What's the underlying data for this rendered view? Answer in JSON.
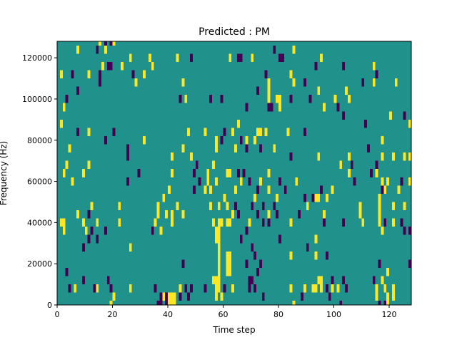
{
  "chart_data": {
    "type": "heatmap",
    "title": "Predicted : PM",
    "xlabel": "Time step",
    "ylabel": "Frequency (Hz)",
    "xlim": [
      0,
      128
    ],
    "ylim": [
      0,
      128000
    ],
    "x_ticks": [
      0,
      20,
      40,
      60,
      80,
      100,
      120
    ],
    "y_ticks": [
      0,
      20000,
      40000,
      60000,
      80000,
      100000,
      120000
    ],
    "x_tick_labels": [
      "0",
      "20",
      "40",
      "60",
      "80",
      "100",
      "120"
    ],
    "y_tick_labels": [
      "0",
      "20000",
      "40000",
      "60000",
      "80000",
      "100000",
      "120000"
    ],
    "grid": false,
    "colormap": "viridis",
    "levels": {
      "low": 0,
      "mid": 1,
      "high": 2
    },
    "colors": {
      "low": "#440154",
      "mid": "#21918c",
      "high": "#fde725"
    },
    "background_value": 1,
    "cell_width_steps": 1,
    "cell_height_hz": 4000,
    "cells": [
      [
        36,
        0,
        0
      ],
      [
        37,
        0,
        0
      ],
      [
        37,
        4000,
        0
      ],
      [
        38,
        4000,
        2
      ],
      [
        39,
        0,
        0
      ],
      [
        39,
        4000,
        0
      ],
      [
        40,
        0,
        2
      ],
      [
        40,
        4000,
        2
      ],
      [
        41,
        0,
        2
      ],
      [
        41,
        4000,
        2
      ],
      [
        42,
        0,
        2
      ],
      [
        42,
        4000,
        2
      ],
      [
        19,
        0,
        2
      ],
      [
        20,
        4000,
        2
      ],
      [
        85,
        0,
        2
      ],
      [
        44,
        4000,
        0
      ],
      [
        47,
        4000,
        0
      ],
      [
        102,
        0,
        0
      ],
      [
        116,
        0,
        0
      ],
      [
        118,
        0,
        0
      ],
      [
        119,
        4000,
        2
      ],
      [
        119,
        0,
        2
      ],
      [
        4,
        8000,
        0
      ],
      [
        6,
        8000,
        2
      ],
      [
        13,
        8000,
        0
      ],
      [
        14,
        8000,
        2
      ],
      [
        19,
        8000,
        0
      ],
      [
        26,
        8000,
        2
      ],
      [
        35,
        8000,
        0
      ],
      [
        44,
        8000,
        2
      ],
      [
        46,
        8000,
        0
      ],
      [
        48,
        8000,
        0
      ],
      [
        53,
        8000,
        0
      ],
      [
        57,
        8000,
        2
      ],
      [
        58,
        8000,
        2
      ],
      [
        60,
        8000,
        0
      ],
      [
        63,
        8000,
        2
      ],
      [
        69,
        8000,
        0
      ],
      [
        71,
        8000,
        0
      ],
      [
        84,
        8000,
        2
      ],
      [
        89,
        8000,
        2
      ],
      [
        92,
        8000,
        2
      ],
      [
        93,
        8000,
        2
      ],
      [
        95,
        8000,
        2
      ],
      [
        97,
        8000,
        0
      ],
      [
        99,
        8000,
        2
      ],
      [
        101,
        8000,
        2
      ],
      [
        104,
        8000,
        0
      ],
      [
        115,
        8000,
        2
      ],
      [
        118,
        8000,
        2
      ],
      [
        121,
        8000,
        2
      ],
      [
        57,
        4000,
        2
      ],
      [
        59,
        4000,
        2
      ],
      [
        74,
        4000,
        0
      ],
      [
        88,
        4000,
        0
      ],
      [
        98,
        4000,
        0
      ],
      [
        115,
        4000,
        2
      ],
      [
        121,
        4000,
        2
      ],
      [
        9,
        12000,
        0
      ],
      [
        18,
        12000,
        0
      ],
      [
        56,
        12000,
        2
      ],
      [
        57,
        12000,
        2
      ],
      [
        58,
        12000,
        2
      ],
      [
        69,
        12000,
        0
      ],
      [
        70,
        12000,
        0
      ],
      [
        94,
        12000,
        2
      ],
      [
        95,
        12000,
        2
      ],
      [
        99,
        12000,
        0
      ],
      [
        103,
        12000,
        0
      ],
      [
        114,
        12000,
        0
      ],
      [
        117,
        12000,
        2
      ],
      [
        3,
        16000,
        0
      ],
      [
        58,
        16000,
        2
      ],
      [
        61,
        16000,
        2
      ],
      [
        62,
        16000,
        2
      ],
      [
        72,
        16000,
        0
      ],
      [
        119,
        16000,
        2
      ],
      [
        58,
        20000,
        2
      ],
      [
        45,
        20000,
        0
      ],
      [
        61,
        20000,
        2
      ],
      [
        62,
        20000,
        2
      ],
      [
        68,
        20000,
        0
      ],
      [
        73,
        20000,
        0
      ],
      [
        116,
        20000,
        0
      ],
      [
        127,
        20000,
        0
      ],
      [
        58,
        24000,
        2
      ],
      [
        61,
        24000,
        2
      ],
      [
        62,
        24000,
        2
      ],
      [
        71,
        24000,
        0
      ],
      [
        84,
        24000,
        2
      ],
      [
        93,
        24000,
        2
      ],
      [
        97,
        24000,
        0
      ],
      [
        58,
        28000,
        2
      ],
      [
        9,
        28000,
        0
      ],
      [
        26,
        28000,
        2
      ],
      [
        70,
        28000,
        0
      ],
      [
        90,
        28000,
        0
      ],
      [
        57,
        32000,
        2
      ],
      [
        58,
        32000,
        2
      ],
      [
        11,
        32000,
        0
      ],
      [
        14,
        32000,
        0
      ],
      [
        66,
        32000,
        0
      ],
      [
        80,
        32000,
        0
      ],
      [
        93,
        32000,
        2
      ],
      [
        2,
        36000,
        2
      ],
      [
        10,
        36000,
        2
      ],
      [
        12,
        36000,
        0
      ],
      [
        17,
        36000,
        0
      ],
      [
        34,
        36000,
        0
      ],
      [
        37,
        36000,
        2
      ],
      [
        57,
        36000,
        2
      ],
      [
        58,
        36000,
        2
      ],
      [
        68,
        36000,
        0
      ],
      [
        117,
        36000,
        2
      ],
      [
        125,
        36000,
        0
      ],
      [
        127,
        36000,
        0
      ],
      [
        1,
        40000,
        2
      ],
      [
        2,
        40000,
        2
      ],
      [
        9,
        40000,
        2
      ],
      [
        14,
        40000,
        2
      ],
      [
        22,
        40000,
        2
      ],
      [
        35,
        40000,
        2
      ],
      [
        41,
        40000,
        2
      ],
      [
        56,
        40000,
        2
      ],
      [
        58,
        40000,
        2
      ],
      [
        59,
        40000,
        2
      ],
      [
        61,
        40000,
        2
      ],
      [
        62,
        40000,
        2
      ],
      [
        69,
        40000,
        2
      ],
      [
        74,
        40000,
        0
      ],
      [
        76,
        40000,
        0
      ],
      [
        84,
        40000,
        2
      ],
      [
        96,
        40000,
        0
      ],
      [
        103,
        40000,
        0
      ],
      [
        110,
        40000,
        2
      ],
      [
        116,
        40000,
        2
      ],
      [
        118,
        40000,
        0
      ],
      [
        121,
        40000,
        2
      ],
      [
        124,
        40000,
        0
      ],
      [
        7,
        44000,
        2
      ],
      [
        11,
        44000,
        0
      ],
      [
        36,
        44000,
        2
      ],
      [
        39,
        44000,
        2
      ],
      [
        41,
        44000,
        2
      ],
      [
        45,
        44000,
        2
      ],
      [
        63,
        44000,
        2
      ],
      [
        65,
        44000,
        0
      ],
      [
        72,
        44000,
        0
      ],
      [
        76,
        44000,
        2
      ],
      [
        79,
        44000,
        0
      ],
      [
        87,
        44000,
        0
      ],
      [
        96,
        44000,
        2
      ],
      [
        109,
        44000,
        2
      ],
      [
        116,
        44000,
        2
      ],
      [
        12,
        48000,
        2
      ],
      [
        22,
        48000,
        2
      ],
      [
        36,
        48000,
        2
      ],
      [
        43,
        48000,
        2
      ],
      [
        55,
        48000,
        2
      ],
      [
        58,
        48000,
        2
      ],
      [
        61,
        48000,
        2
      ],
      [
        64,
        48000,
        0
      ],
      [
        70,
        48000,
        0
      ],
      [
        74,
        48000,
        0
      ],
      [
        78,
        48000,
        0
      ],
      [
        90,
        48000,
        2
      ],
      [
        109,
        48000,
        2
      ],
      [
        116,
        48000,
        2
      ],
      [
        121,
        48000,
        2
      ],
      [
        125,
        48000,
        2
      ],
      [
        38,
        52000,
        2
      ],
      [
        60,
        52000,
        2
      ],
      [
        71,
        52000,
        2
      ],
      [
        79,
        52000,
        2
      ],
      [
        89,
        52000,
        0
      ],
      [
        92,
        52000,
        0
      ],
      [
        93,
        52000,
        2
      ],
      [
        94,
        52000,
        2
      ],
      [
        97,
        52000,
        2
      ],
      [
        116,
        52000,
        2
      ],
      [
        40,
        56000,
        2
      ],
      [
        49,
        56000,
        0
      ],
      [
        53,
        56000,
        2
      ],
      [
        55,
        56000,
        2
      ],
      [
        64,
        56000,
        2
      ],
      [
        72,
        56000,
        0
      ],
      [
        76,
        56000,
        2
      ],
      [
        82,
        56000,
        0
      ],
      [
        95,
        56000,
        0
      ],
      [
        99,
        56000,
        2
      ],
      [
        117,
        56000,
        0
      ],
      [
        118,
        56000,
        2
      ],
      [
        123,
        56000,
        2
      ],
      [
        5,
        60000,
        2
      ],
      [
        25,
        60000,
        0
      ],
      [
        51,
        60000,
        0
      ],
      [
        54,
        60000,
        2
      ],
      [
        57,
        60000,
        2
      ],
      [
        66,
        60000,
        2
      ],
      [
        69,
        60000,
        0
      ],
      [
        73,
        60000,
        2
      ],
      [
        80,
        60000,
        0
      ],
      [
        86,
        60000,
        2
      ],
      [
        107,
        60000,
        0
      ],
      [
        117,
        60000,
        2
      ],
      [
        119,
        60000,
        2
      ],
      [
        124,
        60000,
        0
      ],
      [
        127,
        60000,
        2
      ],
      [
        2,
        64000,
        2
      ],
      [
        9,
        64000,
        2
      ],
      [
        29,
        64000,
        0
      ],
      [
        41,
        64000,
        2
      ],
      [
        49,
        64000,
        0
      ],
      [
        54,
        64000,
        2
      ],
      [
        61,
        64000,
        2
      ],
      [
        62,
        64000,
        2
      ],
      [
        65,
        64000,
        0
      ],
      [
        67,
        64000,
        0
      ],
      [
        76,
        64000,
        2
      ],
      [
        105,
        64000,
        2
      ],
      [
        113,
        64000,
        0
      ],
      [
        115,
        64000,
        2
      ],
      [
        3,
        68000,
        2
      ],
      [
        11,
        68000,
        2
      ],
      [
        50,
        68000,
        0
      ],
      [
        56,
        68000,
        2
      ],
      [
        102,
        68000,
        2
      ],
      [
        106,
        68000,
        0
      ],
      [
        115,
        68000,
        0
      ],
      [
        25,
        72000,
        0
      ],
      [
        41,
        72000,
        2
      ],
      [
        48,
        72000,
        2
      ],
      [
        84,
        72000,
        0
      ],
      [
        94,
        72000,
        2
      ],
      [
        105,
        72000,
        2
      ],
      [
        117,
        72000,
        2
      ],
      [
        121,
        72000,
        2
      ],
      [
        125,
        72000,
        2
      ],
      [
        127,
        72000,
        2
      ],
      [
        4,
        76000,
        2
      ],
      [
        25,
        76000,
        0
      ],
      [
        45,
        76000,
        2
      ],
      [
        57,
        76000,
        2
      ],
      [
        64,
        76000,
        2
      ],
      [
        68,
        76000,
        0
      ],
      [
        73,
        76000,
        0
      ],
      [
        78,
        76000,
        2
      ],
      [
        112,
        76000,
        0
      ],
      [
        17,
        80000,
        0
      ],
      [
        31,
        80000,
        2
      ],
      [
        57,
        80000,
        2
      ],
      [
        59,
        80000,
        0
      ],
      [
        66,
        80000,
        0
      ],
      [
        68,
        80000,
        2
      ],
      [
        71,
        80000,
        2
      ],
      [
        117,
        80000,
        2
      ],
      [
        7,
        84000,
        0
      ],
      [
        11,
        84000,
        2
      ],
      [
        20,
        84000,
        0
      ],
      [
        47,
        84000,
        2
      ],
      [
        53,
        84000,
        2
      ],
      [
        60,
        84000,
        0
      ],
      [
        63,
        84000,
        2
      ],
      [
        72,
        84000,
        2
      ],
      [
        73,
        84000,
        2
      ],
      [
        75,
        84000,
        2
      ],
      [
        83,
        84000,
        2
      ],
      [
        89,
        84000,
        0
      ],
      [
        1,
        88000,
        2
      ],
      [
        65,
        88000,
        2
      ],
      [
        111,
        88000,
        0
      ],
      [
        127,
        88000,
        2
      ],
      [
        103,
        92000,
        0
      ],
      [
        120,
        92000,
        2
      ],
      [
        125,
        92000,
        0
      ],
      [
        2,
        96000,
        2
      ],
      [
        68,
        96000,
        0
      ],
      [
        76,
        96000,
        0
      ],
      [
        77,
        96000,
        0
      ],
      [
        80,
        96000,
        2
      ],
      [
        96,
        96000,
        2
      ],
      [
        101,
        96000,
        0
      ],
      [
        3,
        100000,
        0
      ],
      [
        44,
        100000,
        0
      ],
      [
        46,
        100000,
        2
      ],
      [
        55,
        100000,
        0
      ],
      [
        59,
        100000,
        0
      ],
      [
        76,
        100000,
        2
      ],
      [
        79,
        100000,
        2
      ],
      [
        80,
        100000,
        2
      ],
      [
        84,
        100000,
        0
      ],
      [
        91,
        100000,
        0
      ],
      [
        100,
        100000,
        2
      ],
      [
        105,
        100000,
        2
      ],
      [
        7,
        104000,
        0
      ],
      [
        72,
        104000,
        0
      ],
      [
        76,
        104000,
        2
      ],
      [
        94,
        104000,
        2
      ],
      [
        104,
        104000,
        2
      ],
      [
        15,
        108000,
        0
      ],
      [
        28,
        108000,
        2
      ],
      [
        45,
        108000,
        2
      ],
      [
        76,
        108000,
        2
      ],
      [
        85,
        108000,
        2
      ],
      [
        89,
        108000,
        0
      ],
      [
        110,
        108000,
        0
      ],
      [
        114,
        108000,
        2
      ],
      [
        122,
        108000,
        2
      ],
      [
        1,
        112000,
        2
      ],
      [
        5,
        112000,
        0
      ],
      [
        11,
        112000,
        2
      ],
      [
        15,
        112000,
        0
      ],
      [
        27,
        112000,
        0
      ],
      [
        31,
        112000,
        2
      ],
      [
        75,
        112000,
        0
      ],
      [
        84,
        112000,
        2
      ],
      [
        115,
        112000,
        0
      ],
      [
        16,
        116000,
        2
      ],
      [
        18,
        116000,
        0
      ],
      [
        19,
        116000,
        0
      ],
      [
        23,
        116000,
        2
      ],
      [
        34,
        116000,
        2
      ],
      [
        93,
        116000,
        0
      ],
      [
        103,
        116000,
        0
      ],
      [
        114,
        116000,
        2
      ],
      [
        26,
        120000,
        2
      ],
      [
        33,
        120000,
        2
      ],
      [
        43,
        120000,
        2
      ],
      [
        48,
        120000,
        0
      ],
      [
        62,
        120000,
        2
      ],
      [
        65,
        120000,
        0
      ],
      [
        66,
        120000,
        0
      ],
      [
        70,
        120000,
        2
      ],
      [
        80,
        120000,
        0
      ],
      [
        81,
        120000,
        0
      ],
      [
        95,
        120000,
        2
      ],
      [
        7,
        124000,
        2
      ],
      [
        14,
        124000,
        0
      ],
      [
        17,
        124000,
        2
      ],
      [
        78,
        124000,
        0
      ],
      [
        85,
        124000,
        2
      ],
      [
        15,
        128000,
        2
      ],
      [
        17,
        128000,
        0
      ],
      [
        19,
        128000,
        0
      ],
      [
        20,
        128000,
        2
      ]
    ]
  }
}
